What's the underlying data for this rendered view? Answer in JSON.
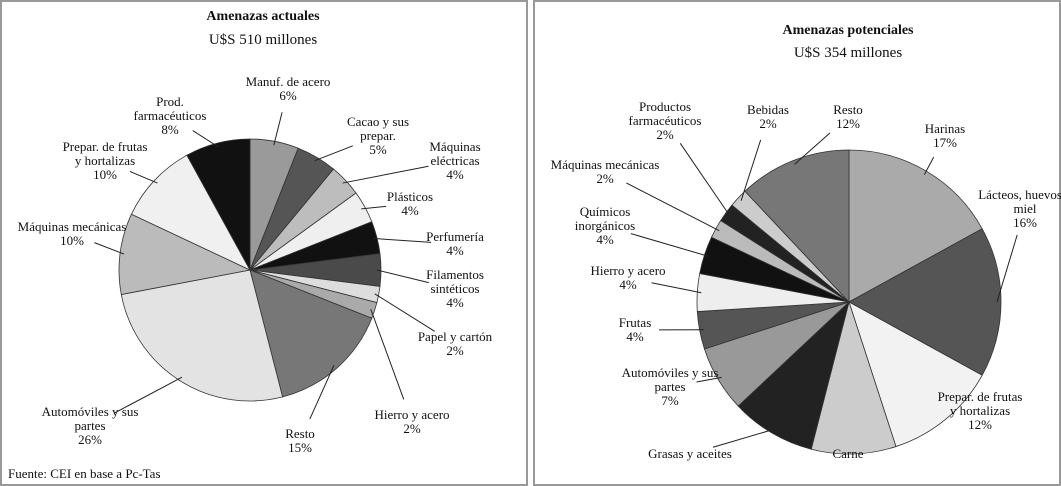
{
  "chart_data": [
    {
      "type": "pie",
      "title": "Amenazas actuales",
      "subtitle": "U$S 510 millones",
      "categories": [
        "Manuf. de acero",
        "Cacao y sus prepar.",
        "Máquinas eléctricas",
        "Plásticos",
        "Perfumería",
        "Filamentos sintéticos",
        "Papel y cartón",
        "Hierro y acero",
        "Resto",
        "Automóviles y sus partes",
        "Máquinas mecánicas",
        "Prepar. de frutas y hortalizas",
        "Prod. farmacéuticos"
      ],
      "values": [
        6,
        5,
        4,
        4,
        4,
        4,
        2,
        2,
        15,
        26,
        10,
        10,
        8
      ],
      "value_labels": [
        "6%",
        "5%",
        "4%",
        "4%",
        "4%",
        "4%",
        "2%",
        "2%",
        "15%",
        "26%",
        "10%",
        "10%",
        "8%"
      ],
      "colors": [
        "#9a9a9a",
        "#555555",
        "#bdbdbd",
        "#efefef",
        "#111111",
        "#4a4a4a",
        "#dddddd",
        "#aaaaaa",
        "#777777",
        "#e3e3e3",
        "#bbbbbb",
        "#f0f0f0",
        "#111111"
      ]
    },
    {
      "type": "pie",
      "title": "Amenazas potenciales",
      "subtitle": "U$S 354 millones",
      "categories": [
        "Harinas",
        "Lácteos, huevos y miel",
        "Prepar. de frutas y hortalizas",
        "Carne",
        "Grasas y aceites",
        "Automóviles y sus partes",
        "Frutas",
        "Hierro y acero",
        "Químicos inorgánicos",
        "Máquinas mecánicas",
        "Productos farmacéuticos",
        "Bebidas",
        "Resto"
      ],
      "values": [
        17,
        16,
        12,
        9,
        9,
        7,
        4,
        4,
        4,
        2,
        2,
        2,
        12
      ],
      "value_labels": [
        "17%",
        "16%",
        "12%",
        null,
        null,
        "7%",
        "4%",
        "4%",
        "4%",
        "2%",
        "2%",
        "2%",
        "12%"
      ],
      "colors": [
        "#aaaaaa",
        "#555555",
        "#f2f2f2",
        "#cccccc",
        "#222222",
        "#999999",
        "#555555",
        "#eeeeee",
        "#111111",
        "#bbbbbb",
        "#222222",
        "#cccccc",
        "#777777"
      ]
    }
  ],
  "source": "Fuente: CEI en base a Pc-Tas"
}
